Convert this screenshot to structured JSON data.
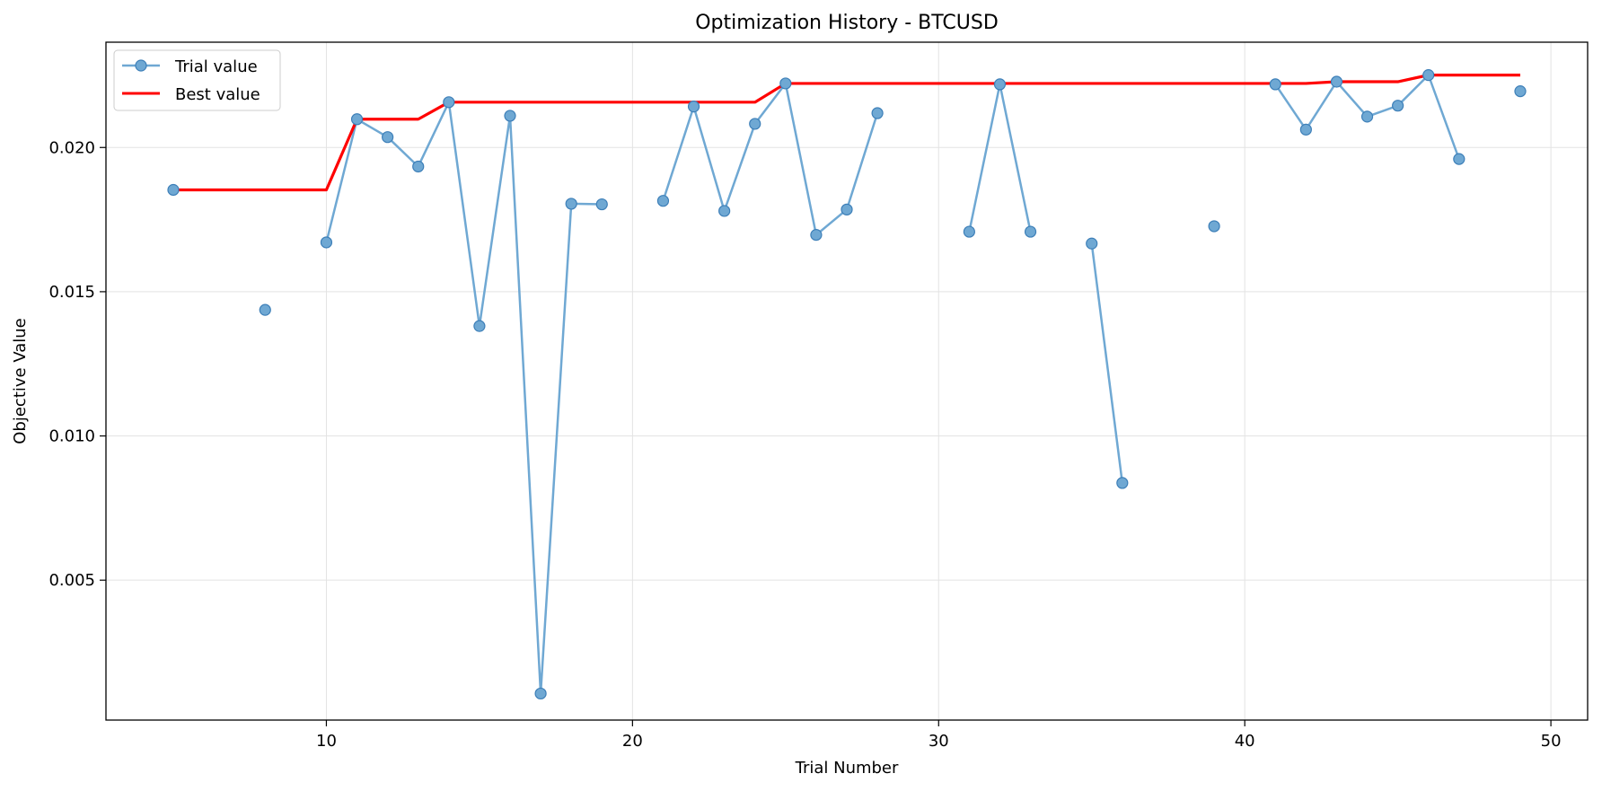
{
  "chart_data": {
    "type": "line",
    "title": "Optimization History - BTCUSD",
    "xlabel": "Trial Number",
    "ylabel": "Objective Value",
    "xlim": [
      2.8,
      51.2
    ],
    "ylim": [
      0.00015,
      0.02365
    ],
    "xticks": [
      10,
      20,
      30,
      40,
      50
    ],
    "yticks": [
      0.005,
      0.01,
      0.015,
      0.02
    ],
    "ytick_labels": [
      "0.005",
      "0.010",
      "0.015",
      "0.020"
    ],
    "grid": true,
    "legend_position": "top-left",
    "series": [
      {
        "name": "Trial value",
        "color": "#6fa8d3",
        "marker": "circle",
        "segments": [
          [
            [
              5,
              0.01853
            ]
          ],
          [
            [
              8,
              0.01437
            ]
          ],
          [
            [
              10,
              0.01671
            ],
            [
              11,
              0.02098
            ],
            [
              12,
              0.02036
            ],
            [
              13,
              0.01934
            ],
            [
              14,
              0.02157
            ],
            [
              15,
              0.01381
            ],
            [
              16,
              0.0211
            ],
            [
              17,
              0.00107
            ],
            [
              18,
              0.01805
            ],
            [
              19,
              0.01803
            ]
          ],
          [
            [
              21,
              0.01815
            ],
            [
              22,
              0.02142
            ],
            [
              23,
              0.0178
            ],
            [
              24,
              0.02082
            ],
            [
              25,
              0.02222
            ],
            [
              26,
              0.01697
            ],
            [
              27,
              0.01785
            ],
            [
              28,
              0.02119
            ]
          ],
          [
            [
              31,
              0.01708
            ],
            [
              32,
              0.02219
            ],
            [
              33,
              0.01708
            ]
          ],
          [
            [
              35,
              0.01667
            ],
            [
              36,
              0.00837
            ]
          ],
          [
            [
              39,
              0.01727
            ]
          ],
          [
            [
              41,
              0.02219
            ],
            [
              42,
              0.02062
            ],
            [
              43,
              0.02228
            ],
            [
              44,
              0.02107
            ],
            [
              45,
              0.02145
            ],
            [
              46,
              0.02251
            ],
            [
              47,
              0.0196
            ]
          ],
          [
            [
              49,
              0.02195
            ]
          ]
        ]
      },
      {
        "name": "Best value",
        "color": "#ff0000",
        "marker": "none",
        "points": [
          [
            5,
            0.01853
          ],
          [
            10,
            0.01853
          ],
          [
            11,
            0.02098
          ],
          [
            13,
            0.02098
          ],
          [
            14,
            0.02157
          ],
          [
            24,
            0.02157
          ],
          [
            25,
            0.02222
          ],
          [
            42,
            0.02222
          ],
          [
            43,
            0.02228
          ],
          [
            45,
            0.02228
          ],
          [
            46,
            0.02251
          ],
          [
            49,
            0.02251
          ]
        ]
      }
    ]
  }
}
